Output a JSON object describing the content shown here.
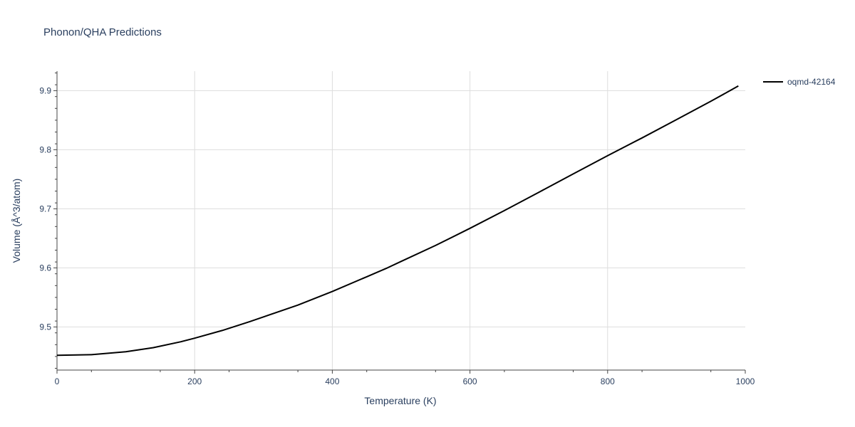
{
  "chart_data": {
    "type": "line",
    "title": "Phonon/QHA Predictions",
    "xlabel": "Temperature (K)",
    "ylabel": "Volume (Å^3/atom)",
    "xlim": [
      0,
      1000
    ],
    "ylim": [
      9.427,
      9.933
    ],
    "x_ticks": [
      0,
      200,
      400,
      600,
      800,
      1000
    ],
    "y_ticks": [
      9.5,
      9.6,
      9.7,
      9.8,
      9.9
    ],
    "x_tick_labels": [
      "0",
      "200",
      "400",
      "600",
      "800",
      "1000"
    ],
    "y_tick_labels": [
      "9.5",
      "9.6",
      "9.7",
      "9.8",
      "9.9"
    ],
    "grid": true,
    "legend_position": "top-right",
    "series": [
      {
        "name": "oqmd-42164",
        "color": "#000000",
        "x": [
          0,
          50,
          100,
          140,
          180,
          200,
          240,
          280,
          300,
          350,
          400,
          450,
          480,
          500,
          550,
          600,
          650,
          700,
          750,
          800,
          850,
          900,
          950,
          990
        ],
        "y": [
          9.452,
          9.453,
          9.458,
          9.465,
          9.475,
          9.481,
          9.494,
          9.509,
          9.517,
          9.537,
          9.56,
          9.585,
          9.6,
          9.611,
          9.638,
          9.667,
          9.697,
          9.728,
          9.759,
          9.79,
          9.82,
          9.851,
          9.882,
          9.908
        ]
      }
    ]
  }
}
